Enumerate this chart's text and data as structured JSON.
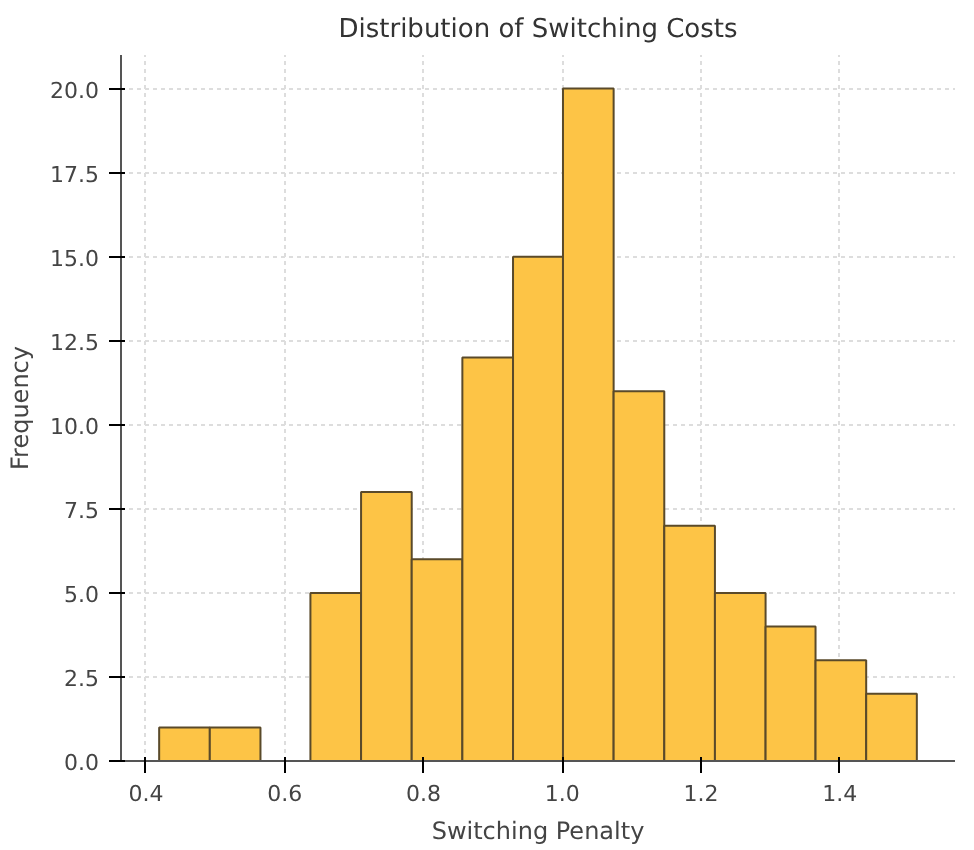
{
  "chart_data": {
    "type": "histogram",
    "title": "Distribution of Switching Costs",
    "xlabel": "Switching Penalty",
    "ylabel": "Frequency",
    "bins": [
      0.419,
      0.492,
      0.565,
      0.637,
      0.71,
      0.783,
      0.856,
      0.929,
      1.001,
      1.074,
      1.147,
      1.22,
      1.293,
      1.365,
      1.438,
      1.511
    ],
    "values": [
      1,
      1,
      0,
      5,
      8,
      6,
      12,
      15,
      20,
      11,
      7,
      5,
      4,
      3,
      2
    ],
    "color": "#fdc446",
    "xlim": [
      0.364,
      1.566
    ],
    "ylim": [
      0,
      21
    ],
    "xticks": [
      {
        "value": 0.4,
        "label": "0.4"
      },
      {
        "value": 0.6,
        "label": "0.6"
      },
      {
        "value": 0.8,
        "label": "0.8"
      },
      {
        "value": 1.0,
        "label": "1.0"
      },
      {
        "value": 1.2,
        "label": "1.2"
      },
      {
        "value": 1.4,
        "label": "1.4"
      }
    ],
    "yticks": [
      {
        "value": 0,
        "label": "0.0"
      },
      {
        "value": 2.5,
        "label": "2.5"
      },
      {
        "value": 5,
        "label": "5.0"
      },
      {
        "value": 7.5,
        "label": "7.5"
      },
      {
        "value": 10,
        "label": "10.0"
      },
      {
        "value": 12.5,
        "label": "12.5"
      },
      {
        "value": 15,
        "label": "15.0"
      },
      {
        "value": 17.5,
        "label": "17.5"
      },
      {
        "value": 20,
        "label": "20.0"
      }
    ],
    "grid": true
  }
}
